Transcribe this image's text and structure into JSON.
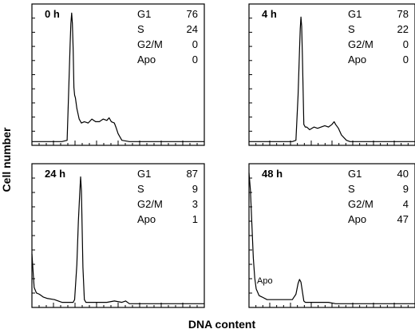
{
  "figure": {
    "ylabel": "Cell number",
    "xlabel": "DNA content"
  },
  "chart_data": [
    {
      "type": "line",
      "title": "0 h",
      "stats": [
        {
          "label": "G1",
          "value": "76"
        },
        {
          "label": "S",
          "value": "24"
        },
        {
          "label": "G2/M",
          "value": "0"
        },
        {
          "label": "Apo",
          "value": "0"
        }
      ],
      "x": [
        0,
        10,
        20,
        30,
        40,
        47,
        49,
        51,
        52,
        53,
        54,
        55,
        56,
        57,
        58,
        60,
        63,
        66,
        70,
        75,
        80,
        85,
        90,
        95,
        100,
        103,
        106,
        110,
        112,
        115,
        120,
        130,
        140,
        150,
        160,
        170,
        180,
        190,
        200,
        210,
        220,
        230
      ],
      "y": [
        0.01,
        0.01,
        0.01,
        0.01,
        0.01,
        0.02,
        0.38,
        0.75,
        0.9,
        0.98,
        0.9,
        0.7,
        0.42,
        0.36,
        0.34,
        0.26,
        0.18,
        0.15,
        0.16,
        0.15,
        0.18,
        0.16,
        0.16,
        0.18,
        0.17,
        0.19,
        0.16,
        0.15,
        0.12,
        0.07,
        0.02,
        0.01,
        0.01,
        0.01,
        0.01,
        0.01,
        0.01,
        0.01,
        0.01,
        0.01,
        0.01,
        0.01
      ],
      "xlim": [
        0,
        230
      ],
      "ylim": [
        0,
        1
      ]
    },
    {
      "type": "line",
      "title": "4 h",
      "stats": [
        {
          "label": "G1",
          "value": "78"
        },
        {
          "label": "S",
          "value": "22"
        },
        {
          "label": "G2/M",
          "value": "0"
        },
        {
          "label": "Apo",
          "value": "0"
        }
      ],
      "x": [
        0,
        10,
        20,
        30,
        40,
        50,
        60,
        65,
        68,
        70,
        71,
        72,
        73,
        74,
        75,
        76,
        78,
        80,
        84,
        90,
        95,
        100,
        105,
        110,
        115,
        118,
        120,
        124,
        128,
        135,
        140,
        150,
        160,
        170,
        180,
        190,
        200,
        210,
        220,
        230
      ],
      "y": [
        0.01,
        0.01,
        0.01,
        0.01,
        0.01,
        0.01,
        0.01,
        0.02,
        0.36,
        0.7,
        0.86,
        0.95,
        0.88,
        0.66,
        0.4,
        0.14,
        0.12,
        0.12,
        0.1,
        0.12,
        0.11,
        0.12,
        0.13,
        0.12,
        0.14,
        0.16,
        0.14,
        0.11,
        0.06,
        0.02,
        0.01,
        0.01,
        0.01,
        0.01,
        0.01,
        0.01,
        0.01,
        0.01,
        0.01,
        0.01
      ],
      "xlim": [
        0,
        230
      ],
      "ylim": [
        0,
        1
      ]
    },
    {
      "type": "line",
      "title": "24 h",
      "stats": [
        {
          "label": "G1",
          "value": "87"
        },
        {
          "label": "S",
          "value": "9"
        },
        {
          "label": "G2/M",
          "value": "3"
        },
        {
          "label": "Apo",
          "value": "1"
        }
      ],
      "x": [
        0,
        3,
        6,
        10,
        15,
        20,
        30,
        40,
        50,
        55,
        57,
        60,
        62,
        64,
        65,
        66,
        67,
        68,
        70,
        72,
        75,
        80,
        90,
        100,
        110,
        120,
        125,
        130,
        140,
        150,
        160,
        170,
        180,
        190,
        200,
        210,
        220,
        230
      ],
      "y": [
        0.38,
        0.13,
        0.09,
        0.08,
        0.06,
        0.05,
        0.04,
        0.02,
        0.02,
        0.02,
        0.04,
        0.3,
        0.62,
        0.85,
        0.95,
        0.85,
        0.58,
        0.28,
        0.04,
        0.02,
        0.02,
        0.02,
        0.02,
        0.02,
        0.03,
        0.02,
        0.03,
        0.01,
        0.01,
        0.01,
        0.01,
        0.01,
        0.01,
        0.01,
        0.01,
        0.01,
        0.01,
        0.01
      ],
      "xlim": [
        0,
        230
      ],
      "ylim": [
        0,
        1
      ]
    },
    {
      "type": "line",
      "title": "48 h",
      "stats": [
        {
          "label": "G1",
          "value": "40"
        },
        {
          "label": "S",
          "value": "9"
        },
        {
          "label": "G2/M",
          "value": "4"
        },
        {
          "label": "Apo",
          "value": "47"
        }
      ],
      "annotation": "Apo",
      "x": [
        0,
        2,
        4,
        6,
        8,
        10,
        14,
        18,
        25,
        35,
        50,
        60,
        65,
        68,
        70,
        72,
        74,
        76,
        78,
        80,
        84,
        90,
        100,
        110,
        120,
        130,
        140,
        150,
        160,
        170,
        180,
        190,
        200,
        210,
        220,
        230
      ],
      "y": [
        0.98,
        0.85,
        0.6,
        0.35,
        0.2,
        0.12,
        0.07,
        0.06,
        0.04,
        0.04,
        0.04,
        0.04,
        0.08,
        0.16,
        0.19,
        0.17,
        0.1,
        0.03,
        0.02,
        0.02,
        0.02,
        0.02,
        0.02,
        0.02,
        0.01,
        0.01,
        0.01,
        0.01,
        0.01,
        0.01,
        0.01,
        0.01,
        0.01,
        0.01,
        0.01,
        0.01
      ],
      "xlim": [
        0,
        230
      ],
      "ylim": [
        0,
        1
      ]
    }
  ]
}
